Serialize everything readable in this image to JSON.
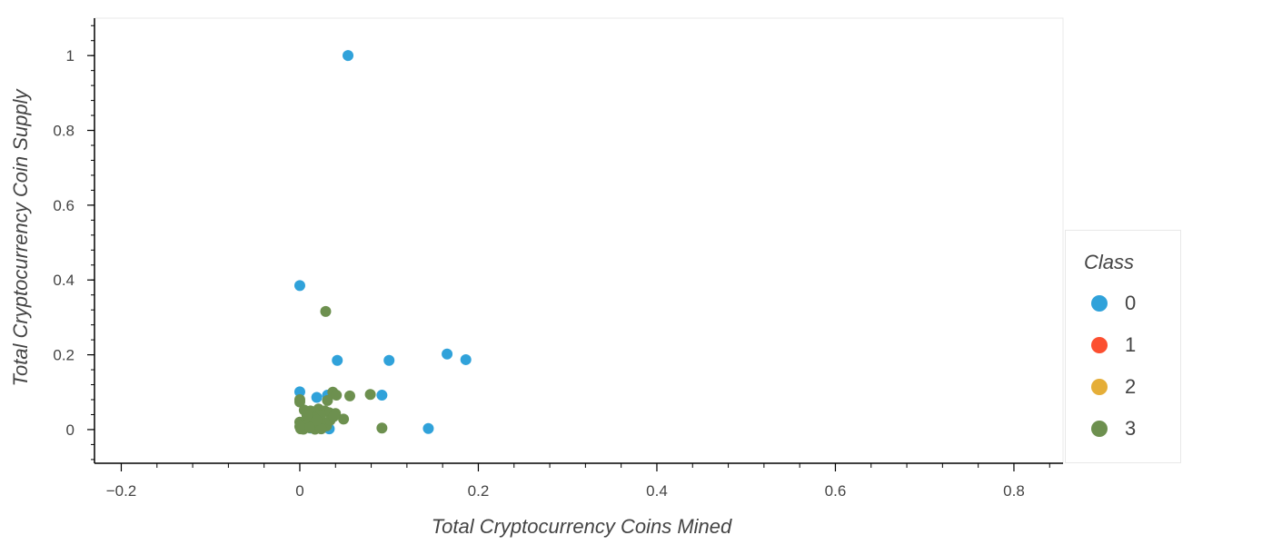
{
  "chart_data": {
    "type": "scatter",
    "title": "",
    "xlabel": "Total Cryptocurrency Coins Mined",
    "ylabel": "Total Cryptocurrency Coin Supply",
    "xlim": [
      -0.23,
      0.855
    ],
    "ylim": [
      -0.09,
      1.1
    ],
    "xticks": [
      -0.2,
      0,
      0.2,
      0.4,
      0.6,
      0.8
    ],
    "xtick_labels": [
      "−0.2",
      "0",
      "0.2",
      "0.4",
      "0.6",
      "0.8"
    ],
    "yticks": [
      0,
      0.2,
      0.4,
      0.6,
      0.8,
      1
    ],
    "ytick_labels": [
      "0",
      "0.2",
      "0.4",
      "0.6",
      "0.8",
      "1"
    ],
    "grid": false,
    "legend": {
      "title": "Class",
      "placement": "right"
    },
    "series": [
      {
        "name": "0",
        "color": "#30a2da",
        "points": [
          [
            0.054,
            1.0
          ],
          [
            0.0,
            0.385
          ],
          [
            0.042,
            0.185
          ],
          [
            0.1,
            0.185
          ],
          [
            0.165,
            0.202
          ],
          [
            0.186,
            0.187
          ],
          [
            0.0,
            0.101
          ],
          [
            0.019,
            0.086
          ],
          [
            0.031,
            0.092
          ],
          [
            0.092,
            0.092
          ],
          [
            0.144,
            0.003
          ],
          [
            0.033,
            0.002
          ],
          [
            0.012,
            0.004
          ],
          [
            0.001,
            0.004
          ]
        ]
      },
      {
        "name": "1",
        "color": "#fc4f30",
        "points": []
      },
      {
        "name": "2",
        "color": "#e5ae38",
        "points": []
      },
      {
        "name": "3",
        "color": "#6d904f",
        "points": [
          [
            0.029,
            0.316
          ],
          [
            0.0,
            0.08
          ],
          [
            0.0,
            0.074
          ],
          [
            0.037,
            0.1
          ],
          [
            0.041,
            0.092
          ],
          [
            0.056,
            0.09
          ],
          [
            0.079,
            0.094
          ],
          [
            0.031,
            0.078
          ],
          [
            0.005,
            0.052
          ],
          [
            0.012,
            0.05
          ],
          [
            0.021,
            0.055
          ],
          [
            0.028,
            0.05
          ],
          [
            0.033,
            0.045
          ],
          [
            0.04,
            0.043
          ],
          [
            0.049,
            0.028
          ],
          [
            0.023,
            0.038
          ],
          [
            0.016,
            0.031
          ],
          [
            0.008,
            0.028
          ],
          [
            0.0,
            0.02
          ],
          [
            0.002,
            0.012
          ],
          [
            0.006,
            0.009
          ],
          [
            0.01,
            0.018
          ],
          [
            0.014,
            0.008
          ],
          [
            0.018,
            0.015
          ],
          [
            0.022,
            0.005
          ],
          [
            0.026,
            0.02
          ],
          [
            0.03,
            0.01
          ],
          [
            0.034,
            0.025
          ],
          [
            0.001,
            0.002
          ],
          [
            0.004,
            0.001
          ],
          [
            0.017,
            0.001
          ],
          [
            0.024,
            0.002
          ],
          [
            0.092,
            0.004
          ],
          [
            0.008,
            0.038
          ],
          [
            0.038,
            0.035
          ],
          [
            0.011,
            0.005
          ],
          [
            0.019,
            0.025
          ],
          [
            0.0,
            0.008
          ]
        ]
      }
    ]
  }
}
